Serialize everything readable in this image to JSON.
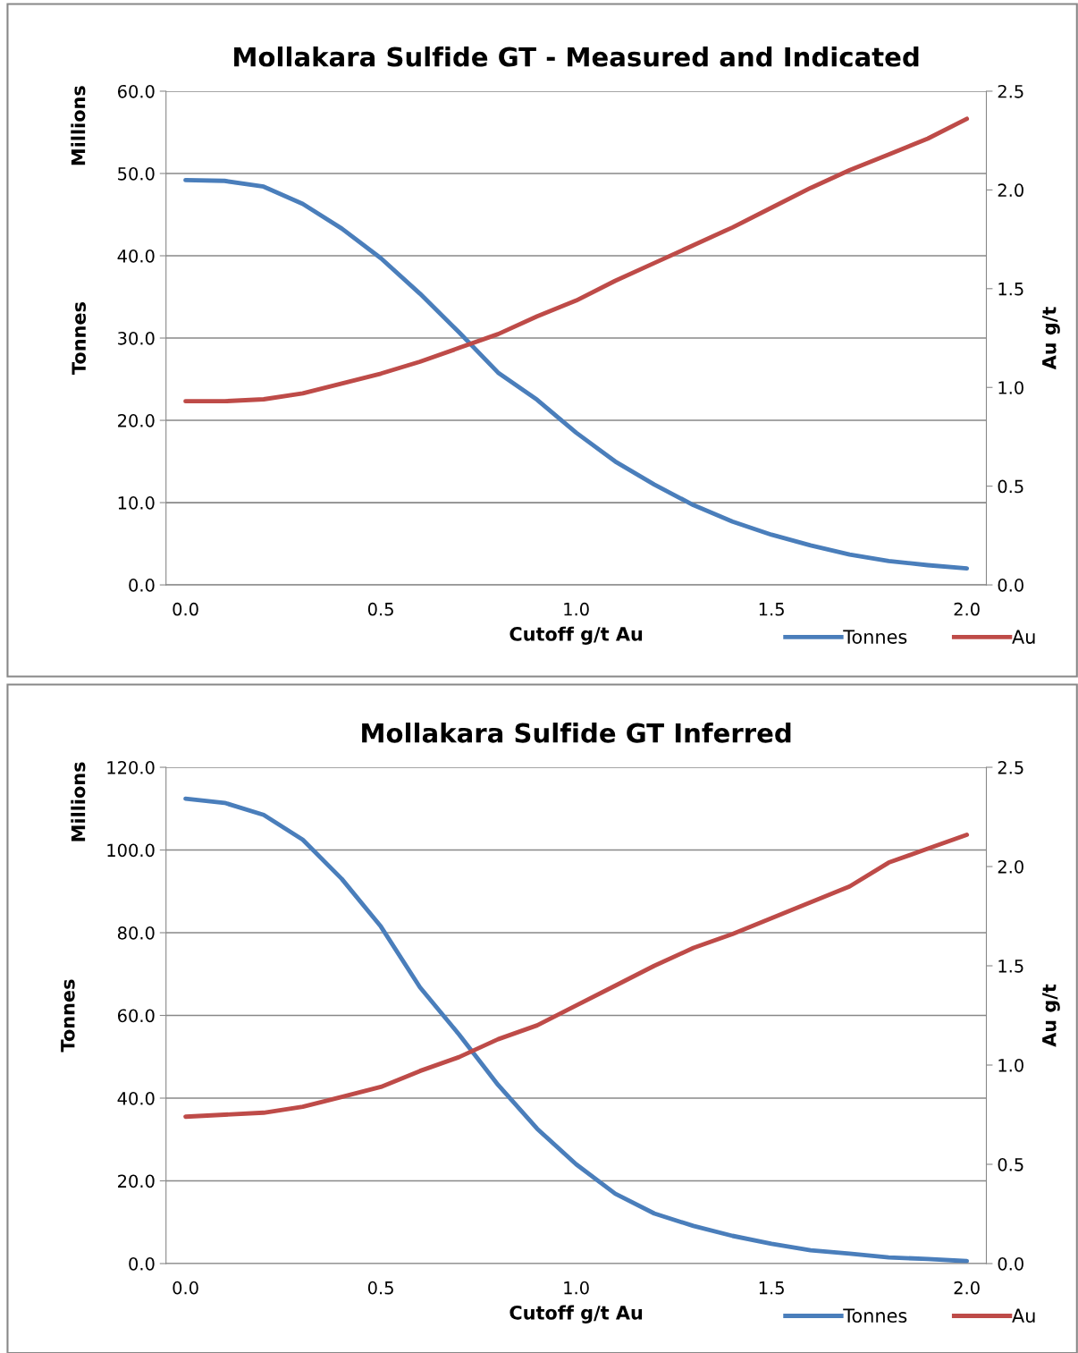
{
  "chart_data": [
    {
      "type": "line",
      "title": "Mollakara Sulfide GT - Measured and Indicated",
      "xlabel": "Cutoff g/t Au",
      "ylabel": "Tonnes",
      "y2label": "Au g/t",
      "annotations": [
        "Millions"
      ],
      "categories": [
        "0.0",
        null,
        null,
        null,
        null,
        "0.5",
        null,
        null,
        null,
        null,
        "1.0",
        null,
        null,
        null,
        null,
        "1.5",
        null,
        null,
        null,
        null,
        "2.0"
      ],
      "series": [
        {
          "name": "Tonnes",
          "color": "#4a7ebb",
          "values": [
            49.2,
            49.1,
            48.4,
            46.3,
            43.3,
            39.7,
            35.4,
            30.7,
            25.8,
            22.5,
            18.5,
            15.0,
            12.2,
            9.7,
            7.7,
            6.1,
            4.8,
            3.7,
            2.9,
            2.4,
            2.0
          ]
        },
        {
          "name": "Au",
          "color": "#be4b48",
          "axis": "y2",
          "values": [
            0.93,
            0.93,
            0.94,
            0.97,
            1.02,
            1.07,
            1.13,
            1.2,
            1.27,
            1.36,
            1.44,
            1.54,
            1.63,
            1.72,
            1.81,
            1.91,
            2.01,
            2.1,
            2.18,
            2.26,
            2.36
          ]
        }
      ],
      "ylim": [
        0,
        60
      ],
      "yticks": [
        {
          "value": 0,
          "label": "0.0"
        },
        {
          "value": 10,
          "label": "10.0"
        },
        {
          "value": 20,
          "label": "20.0"
        },
        {
          "value": 30,
          "label": "30.0"
        },
        {
          "value": 40,
          "label": "40.0"
        },
        {
          "value": 50,
          "label": "50.0"
        },
        {
          "value": 60,
          "label": "60.0"
        }
      ],
      "y2lim": [
        0,
        2.5
      ],
      "y2ticks": [
        {
          "value": 0,
          "label": "0.0"
        },
        0.5,
        {
          "value": 1,
          "label": "1.0"
        },
        1.5,
        {
          "value": 2,
          "label": "2.0"
        },
        2.5
      ],
      "grid": "y",
      "legend": "bottom right",
      "line_style": "solid",
      "marker": "none"
    },
    {
      "type": "line",
      "title": "Mollakara Sulfide GT Inferred",
      "xlabel": "Cutoff g/t Au",
      "ylabel": "Tonnes",
      "y2label": "Au g/t",
      "annotations": [
        "Millions"
      ],
      "categories": [
        "0.0",
        null,
        null,
        null,
        null,
        "0.5",
        null,
        null,
        null,
        null,
        "1.0",
        null,
        null,
        null,
        null,
        "1.5",
        null,
        null,
        null,
        null,
        "2.0"
      ],
      "series": [
        {
          "name": "Tonnes",
          "color": "#4a7ebb",
          "values": [
            112.4,
            111.4,
            108.5,
            102.5,
            93.0,
            81.5,
            66.8,
            55.4,
            43.2,
            32.6,
            24.0,
            16.9,
            12.1,
            9.1,
            6.7,
            4.8,
            3.2,
            2.4,
            1.5,
            1.1,
            0.6
          ]
        },
        {
          "name": "Au",
          "color": "#be4b48",
          "axis": "y2",
          "values": [
            0.74,
            0.75,
            0.76,
            0.79,
            0.84,
            0.89,
            0.97,
            1.04,
            1.13,
            1.2,
            1.3,
            1.4,
            1.5,
            1.59,
            1.66,
            1.74,
            1.82,
            1.9,
            2.02,
            2.09,
            2.16
          ]
        }
      ],
      "ylim": [
        0,
        120
      ],
      "yticks": [
        {
          "value": 0,
          "label": "0.0"
        },
        {
          "value": 20,
          "label": "20.0"
        },
        {
          "value": 40,
          "label": "40.0"
        },
        {
          "value": 60,
          "label": "60.0"
        },
        {
          "value": 80,
          "label": "80.0"
        },
        {
          "value": 100,
          "label": "100.0"
        },
        {
          "value": 120,
          "label": "120.0"
        }
      ],
      "y2lim": [
        0,
        2.5
      ],
      "y2ticks": [
        {
          "value": 0,
          "label": "0.0"
        },
        0.5,
        {
          "value": 1,
          "label": "1.0"
        },
        1.5,
        {
          "value": 2,
          "label": "2.0"
        },
        2.5
      ],
      "grid": "y",
      "legend": "bottom right",
      "line_style": "solid",
      "marker": "none"
    }
  ]
}
